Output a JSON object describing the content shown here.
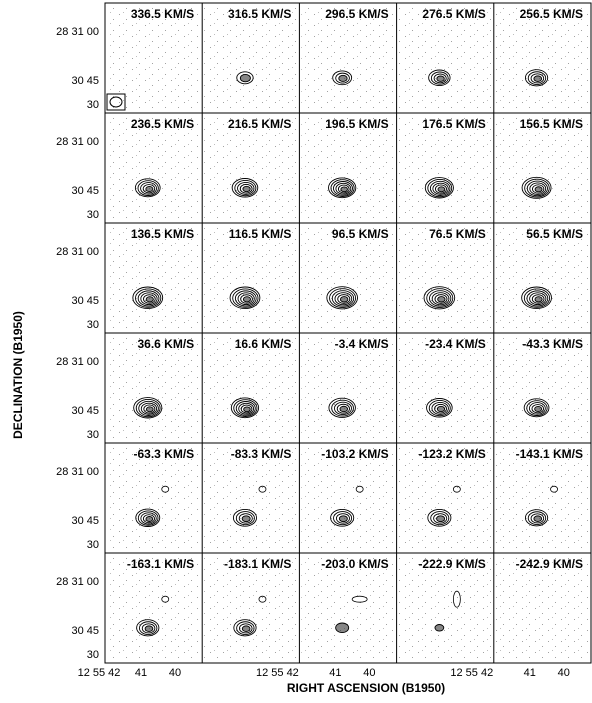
{
  "figure": {
    "panels": [
      {
        "velocity": "336.5 KM/S"
      },
      {
        "velocity": "316.5 KM/S"
      },
      {
        "velocity": "296.5 KM/S"
      },
      {
        "velocity": "276.5 KM/S"
      },
      {
        "velocity": "256.5 KM/S"
      },
      {
        "velocity": "236.5 KM/S"
      },
      {
        "velocity": "216.5 KM/S"
      },
      {
        "velocity": "196.5 KM/S"
      },
      {
        "velocity": "176.5 KM/S"
      },
      {
        "velocity": "156.5 KM/S"
      },
      {
        "velocity": "136.5 KM/S"
      },
      {
        "velocity": "116.5 KM/S"
      },
      {
        "velocity": "96.5 KM/S"
      },
      {
        "velocity": "76.5 KM/S"
      },
      {
        "velocity": "56.5 KM/S"
      },
      {
        "velocity": "36.6 KM/S"
      },
      {
        "velocity": "16.6 KM/S"
      },
      {
        "velocity": "-3.4 KM/S"
      },
      {
        "velocity": "-23.4 KM/S"
      },
      {
        "velocity": "-43.3 KM/S"
      },
      {
        "velocity": "-63.3 KM/S"
      },
      {
        "velocity": "-83.3 KM/S"
      },
      {
        "velocity": "-103.2 KM/S"
      },
      {
        "velocity": "-123.2 KM/S"
      },
      {
        "velocity": "-143.1 KM/S"
      },
      {
        "velocity": "-163.1 KM/S"
      },
      {
        "velocity": "-183.1 KM/S"
      },
      {
        "velocity": "-203.0 KM/S"
      },
      {
        "velocity": "-222.9 KM/S"
      },
      {
        "velocity": "-242.9 KM/S"
      }
    ],
    "y_tick_labels": [
      "28 31 00",
      "30 45",
      "30"
    ],
    "x_tick_labels_left": [
      "12 55 42",
      "41",
      "40"
    ],
    "x_tick_labels_mid": [
      "12 55 42",
      "41",
      "40"
    ],
    "x_tick_labels_right": [
      "12 55 42",
      "41",
      "40"
    ],
    "y_axis_title": "DECLINATION (B1950)",
    "x_axis_title": "RIGHT ASCENSION (B1950)"
  }
}
